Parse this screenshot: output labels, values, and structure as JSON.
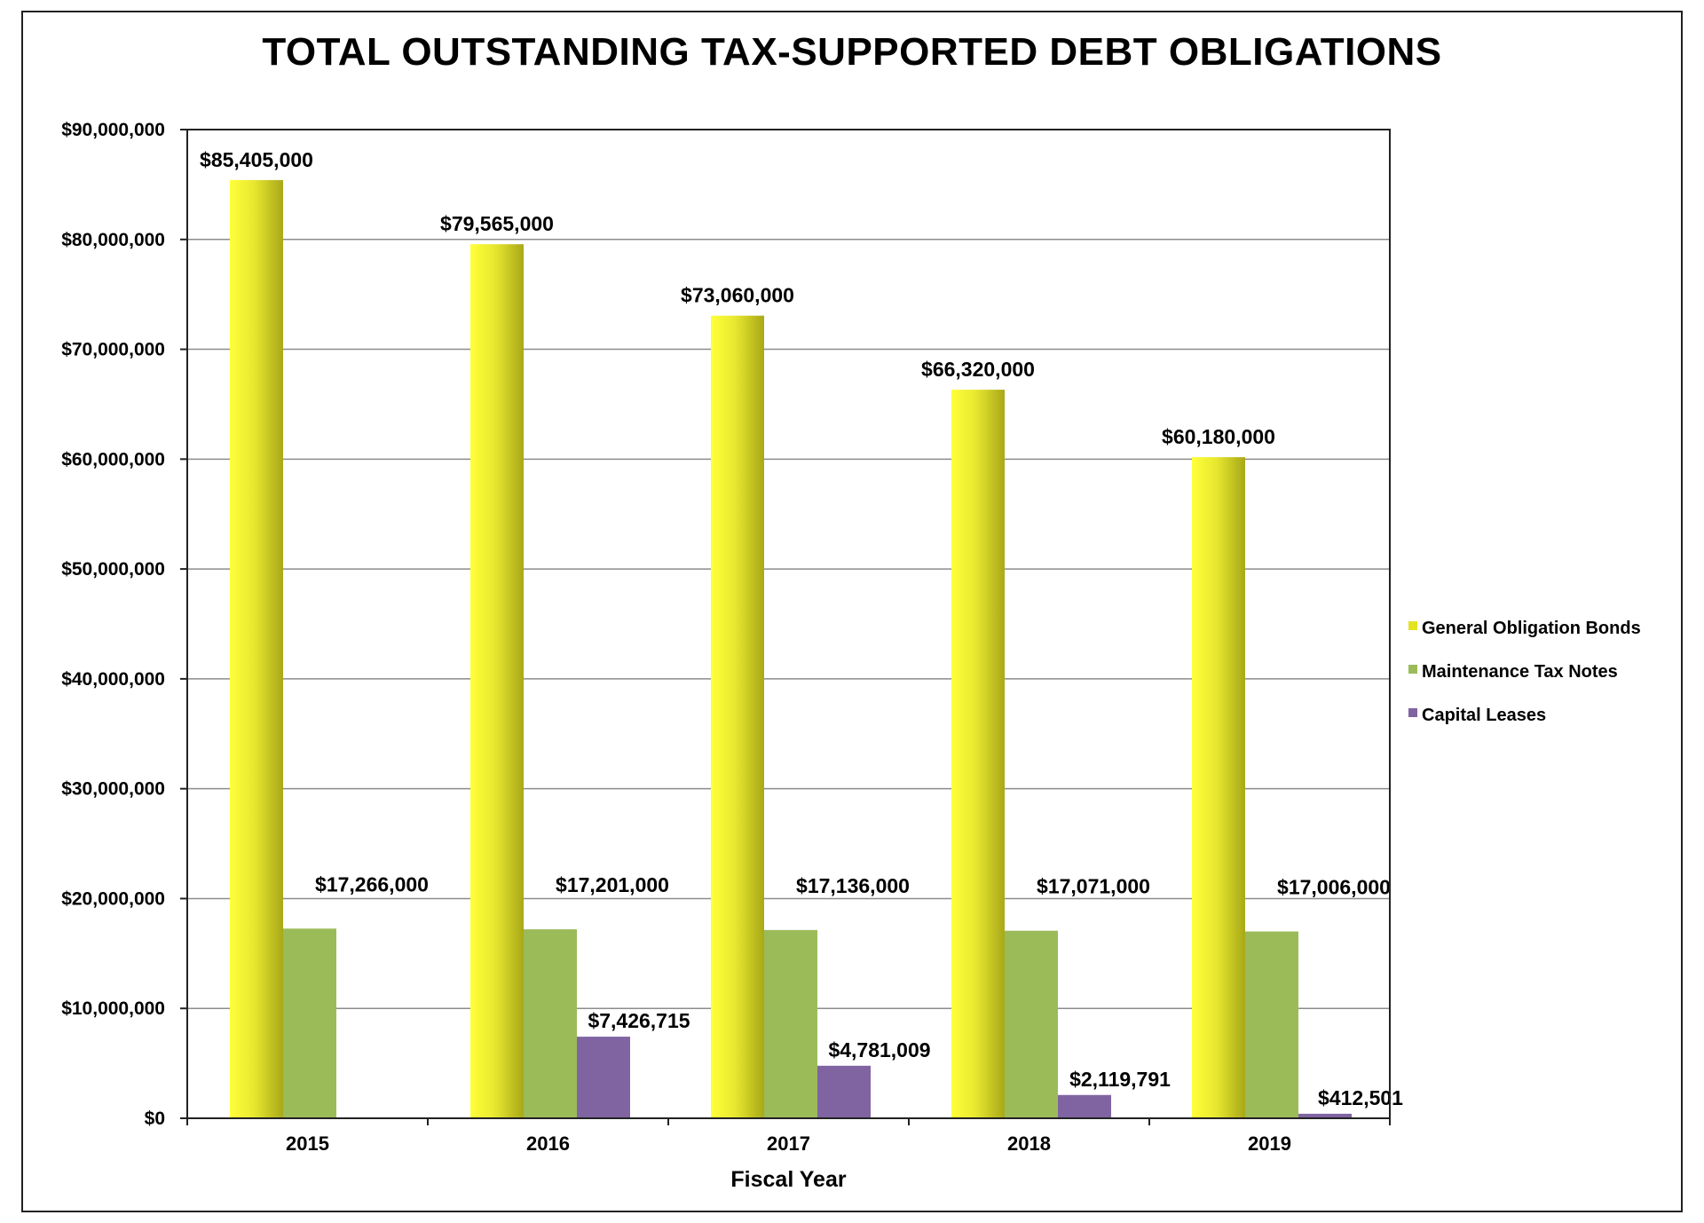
{
  "chart_data": {
    "type": "bar",
    "title": "TOTAL OUTSTANDING TAX-SUPPORTED DEBT OBLIGATIONS",
    "xlabel": "Fiscal Year",
    "ylabel": "",
    "categories": [
      "2015",
      "2016",
      "2017",
      "2018",
      "2019"
    ],
    "ylim": [
      0,
      90000000
    ],
    "y_ticks": [
      0,
      10000000,
      20000000,
      30000000,
      40000000,
      50000000,
      60000000,
      70000000,
      80000000,
      90000000
    ],
    "y_tick_labels": [
      "$0",
      "$10,000,000",
      "$20,000,000",
      "$30,000,000",
      "$40,000,000",
      "$50,000,000",
      "$60,000,000",
      "$70,000,000",
      "$80,000,000",
      "$90,000,000"
    ],
    "grid": true,
    "legend_position": "right",
    "series": [
      {
        "name": "General Obligation Bonds",
        "color": "#d9d92a",
        "values": [
          85405000,
          79565000,
          73060000,
          66320000,
          60180000
        ],
        "labels": [
          "$85,405,000",
          "$79,565,000",
          "$73,060,000",
          "$66,320,000",
          "$60,180,000"
        ]
      },
      {
        "name": "Maintenance Tax Notes",
        "color": "#9bbb59",
        "values": [
          17266000,
          17201000,
          17136000,
          17071000,
          17006000
        ],
        "labels": [
          "$17,266,000",
          "$17,201,000",
          "$17,136,000",
          "$17,071,000",
          "$17,006,000"
        ]
      },
      {
        "name": "Capital Leases",
        "color": "#8064a2",
        "values": [
          0,
          7426715,
          4781009,
          2119791,
          412501
        ],
        "labels": [
          "",
          "$7,426,715",
          "$4,781,009",
          "$2,119,791",
          "$412,501"
        ]
      }
    ]
  }
}
